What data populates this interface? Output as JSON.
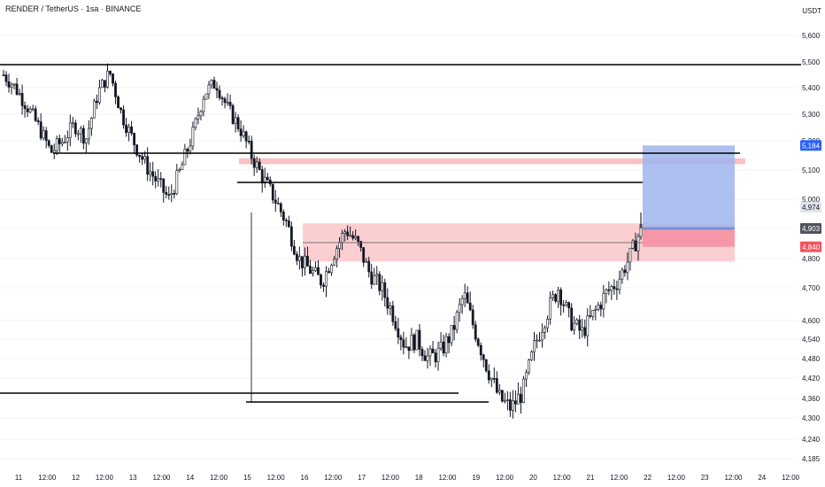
{
  "header": {
    "title": "RENDER / TetherUS · 1sa · BINANCE"
  },
  "currency": "USDT",
  "colors": {
    "up": "#131722",
    "down": "#131722",
    "grid": "#f0f3fa",
    "level": "#000000",
    "red_zone": "#f7a8ad",
    "blue_zone": "#9fb5ec",
    "label_blue": "#2962ff",
    "label_grey": "#787b86",
    "label_red": "#f23645"
  },
  "price_axis": {
    "ticks": [
      "5,600",
      "5,500",
      "5,400",
      "5,300",
      "5,200",
      "5,100",
      "5,000",
      "4,903",
      "4,800",
      "4,700",
      "4,600",
      "4,540",
      "4,480",
      "4,420",
      "4,360",
      "4,300",
      "4,240",
      "4,185"
    ],
    "badges": [
      {
        "value": "5,184",
        "color": "blue"
      },
      {
        "value": "4,974",
        "color": "grey"
      },
      {
        "value": "4,903",
        "color": "dark"
      },
      {
        "value": "4,840",
        "color": "red"
      }
    ]
  },
  "time_axis": {
    "ticks": [
      "11",
      "12:00",
      "12",
      "12:00",
      "13",
      "12:00",
      "14",
      "12:00",
      "15",
      "12:00",
      "16",
      "12:00",
      "17",
      "12:00",
      "18",
      "12:00",
      "19",
      "12:00",
      "20",
      "12:00",
      "21",
      "12:00",
      "22",
      "12:00",
      "23",
      "12:00",
      "24",
      "12:00"
    ]
  },
  "chart_data": {
    "type": "candlestick",
    "title": "RENDER / TetherUS · 1sa · BINANCE",
    "x_range": [
      "11",
      "24 12:00"
    ],
    "y_range": [
      4185,
      5600
    ],
    "levels": [
      5475,
      5160,
      5070,
      4375,
      4355
    ],
    "zones": [
      {
        "kind": "resistance",
        "low": 4790,
        "high": 4920
      },
      {
        "kind": "resistance",
        "low": 5120,
        "high": 5140
      },
      {
        "kind": "target",
        "low": 4903,
        "high": 5184
      },
      {
        "kind": "stop",
        "low": 4840,
        "high": 4903
      }
    ],
    "last_price": 4903,
    "candles_close_path": [
      5450,
      5400,
      5330,
      5250,
      5160,
      5200,
      5260,
      5210,
      5380,
      5460,
      5300,
      5200,
      5120,
      5060,
      5000,
      5100,
      5220,
      5380,
      5420,
      5320,
      5250,
      5150,
      5070,
      5000,
      4920,
      4800,
      4760,
      4720,
      4820,
      4900,
      4850,
      4750,
      4700,
      4620,
      4520,
      4540,
      4480,
      4500,
      4560,
      4680,
      4560,
      4450,
      4360,
      4330,
      4380,
      4520,
      4620,
      4700,
      4600,
      4560,
      4620,
      4680,
      4720,
      4800,
      4900
    ]
  }
}
